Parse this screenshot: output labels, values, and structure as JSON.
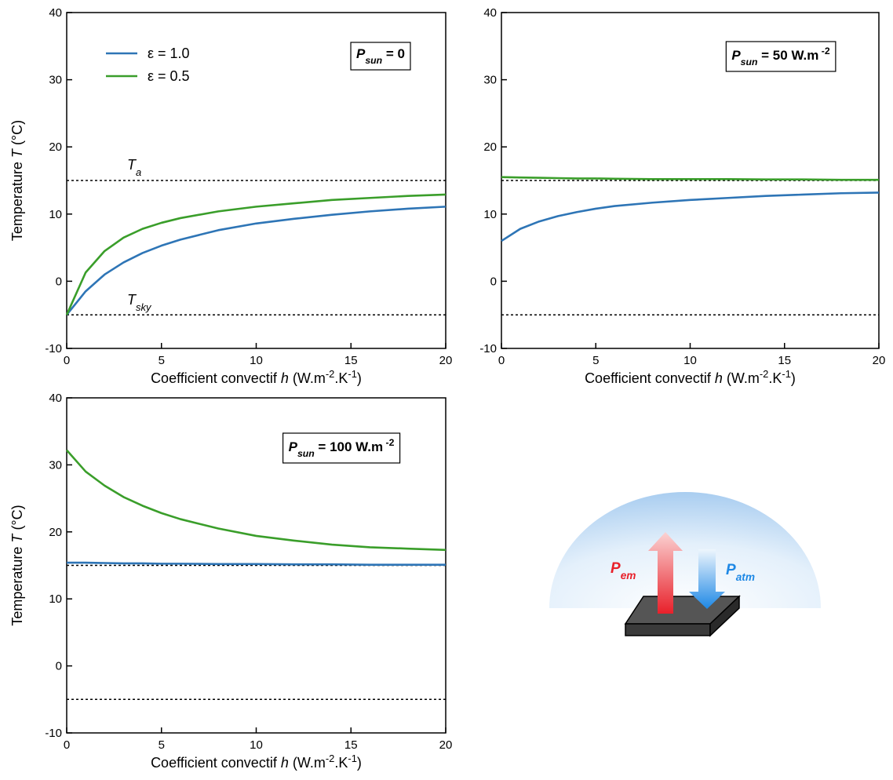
{
  "chart_data": [
    {
      "type": "line",
      "x_label": [
        {
          "text": "Coefficient convectif  "
        },
        {
          "text": "h",
          "italic": true
        },
        {
          "text": " (W.m"
        },
        {
          "text": "-2",
          "sup": true
        },
        {
          "text": ".K"
        },
        {
          "text": "-1",
          "sup": true
        },
        {
          "text": ")"
        }
      ],
      "y_label": [
        {
          "text": "Temperature  "
        },
        {
          "text": "T",
          "italic": true
        },
        {
          "text": " (°C)"
        }
      ],
      "annotation": [
        {
          "text": "P",
          "italic": true
        },
        {
          "text": "sun",
          "italic": true,
          "sub": true
        },
        {
          "text": " = 0"
        }
      ],
      "x": [
        0,
        1,
        2,
        3,
        4,
        5,
        6,
        8,
        10,
        12,
        14,
        16,
        18,
        20
      ],
      "series": [
        {
          "name": "ε = 1.0",
          "color": "#2e75b6",
          "values": [
            -5,
            -1.5,
            1,
            2.8,
            4.2,
            5.3,
            6.2,
            7.6,
            8.6,
            9.3,
            9.9,
            10.4,
            10.8,
            11.1
          ]
        },
        {
          "name": "ε = 0.5",
          "color": "#3a9e2a",
          "values": [
            -5,
            1.3,
            4.5,
            6.5,
            7.8,
            8.7,
            9.4,
            10.4,
            11.1,
            11.6,
            12.1,
            12.4,
            12.7,
            12.9
          ]
        }
      ],
      "reference_lines": [
        {
          "value": 15,
          "label": [
            {
              "text": "T",
              "italic": true
            },
            {
              "text": "a",
              "italic": true,
              "sub": true
            }
          ]
        },
        {
          "value": -5,
          "label": [
            {
              "text": "T",
              "italic": true
            },
            {
              "text": "sky",
              "italic": true,
              "sub": true
            }
          ]
        }
      ],
      "legend": "upper left",
      "xlim": [
        0,
        20
      ],
      "xticks": [
        0,
        5,
        10,
        15,
        20
      ],
      "ylim": [
        -10,
        40
      ],
      "yticks": [
        -10,
        0,
        10,
        20,
        30,
        40
      ]
    },
    {
      "type": "line",
      "x_label": [
        {
          "text": "Coefficient convectif  "
        },
        {
          "text": "h",
          "italic": true
        },
        {
          "text": " (W.m"
        },
        {
          "text": "-2",
          "sup": true
        },
        {
          "text": ".K"
        },
        {
          "text": "-1",
          "sup": true
        },
        {
          "text": ")"
        }
      ],
      "annotation": [
        {
          "text": "P",
          "italic": true
        },
        {
          "text": "sun",
          "italic": true,
          "sub": true
        },
        {
          "text": " = 50 W.m"
        },
        {
          "text": " -2",
          "sup": true
        }
      ],
      "x": [
        0,
        1,
        2,
        3,
        4,
        5,
        6,
        8,
        10,
        12,
        14,
        16,
        18,
        20
      ],
      "series": [
        {
          "name": "ε = 1.0",
          "color": "#2e75b6",
          "values": [
            6,
            7.8,
            8.9,
            9.7,
            10.3,
            10.8,
            11.2,
            11.7,
            12.1,
            12.4,
            12.7,
            12.9,
            13.1,
            13.2
          ]
        },
        {
          "name": "ε = 0.5",
          "color": "#3a9e2a",
          "values": [
            15.5,
            15.45,
            15.4,
            15.35,
            15.3,
            15.3,
            15.25,
            15.2,
            15.2,
            15.2,
            15.15,
            15.15,
            15.1,
            15.1
          ]
        }
      ],
      "reference_lines": [
        {
          "value": 15
        },
        {
          "value": -5
        }
      ],
      "xlim": [
        0,
        20
      ],
      "xticks": [
        0,
        5,
        10,
        15,
        20
      ],
      "ylim": [
        -10,
        40
      ],
      "yticks": [
        -10,
        0,
        10,
        20,
        30,
        40
      ]
    },
    {
      "type": "line",
      "x_label": [
        {
          "text": "Coefficient convectif  "
        },
        {
          "text": "h",
          "italic": true
        },
        {
          "text": " (W.m"
        },
        {
          "text": "-2",
          "sup": true
        },
        {
          "text": ".K"
        },
        {
          "text": "-1",
          "sup": true
        },
        {
          "text": ")"
        }
      ],
      "y_label": [
        {
          "text": "Temperature  "
        },
        {
          "text": "T",
          "italic": true
        },
        {
          "text": " (°C)"
        }
      ],
      "annotation": [
        {
          "text": "P",
          "italic": true
        },
        {
          "text": "sun",
          "italic": true,
          "sub": true
        },
        {
          "text": " = 100 W.m"
        },
        {
          "text": " -2",
          "sup": true
        }
      ],
      "x": [
        0,
        1,
        2,
        3,
        4,
        5,
        6,
        8,
        10,
        12,
        14,
        16,
        18,
        20
      ],
      "series": [
        {
          "name": "ε = 1.0",
          "color": "#2e75b6",
          "values": [
            15.4,
            15.4,
            15.35,
            15.3,
            15.3,
            15.25,
            15.25,
            15.2,
            15.2,
            15.15,
            15.15,
            15.1,
            15.1,
            15.1
          ]
        },
        {
          "name": "ε = 0.5",
          "color": "#3a9e2a",
          "values": [
            32.2,
            29,
            26.9,
            25.2,
            23.9,
            22.8,
            21.9,
            20.5,
            19.4,
            18.7,
            18.1,
            17.7,
            17.5,
            17.3
          ]
        }
      ],
      "reference_lines": [
        {
          "value": 15
        },
        {
          "value": -5
        }
      ],
      "xlim": [
        0,
        20
      ],
      "xticks": [
        0,
        5,
        10,
        15,
        20
      ],
      "ylim": [
        -10,
        40
      ],
      "yticks": [
        -10,
        0,
        10,
        20,
        30,
        40
      ]
    }
  ],
  "diagram": {
    "labels": [
      [
        {
          "text": "P",
          "italic": true,
          "color": "#e8202a"
        },
        {
          "text": "em",
          "italic": true,
          "sub": true,
          "color": "#e8202a"
        }
      ],
      [
        {
          "text": "P",
          "italic": true,
          "color": "#1e88e5"
        },
        {
          "text": "atm",
          "italic": true,
          "sub": true,
          "color": "#1e88e5"
        }
      ]
    ]
  }
}
